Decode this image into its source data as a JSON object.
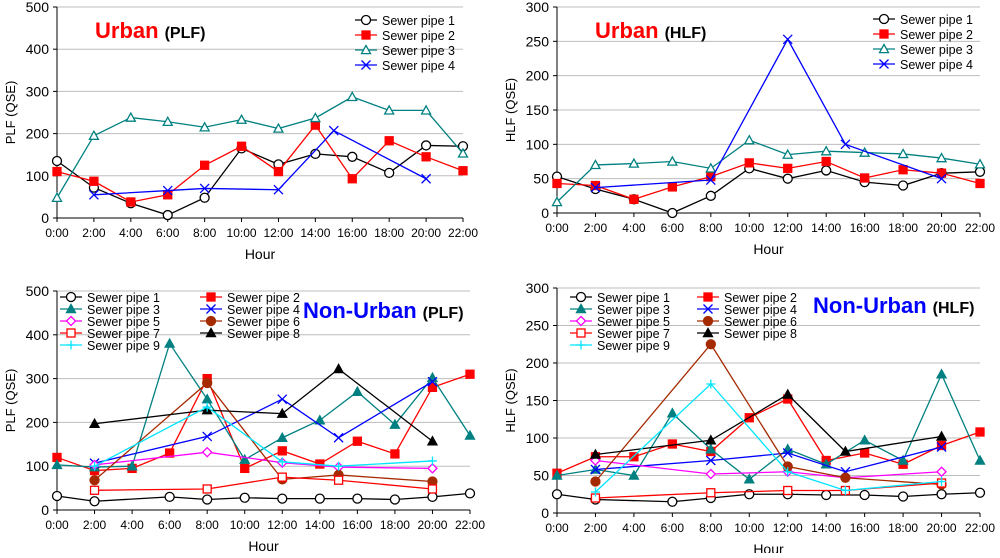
{
  "chart_data": [
    {
      "type": "line",
      "title": "Urban",
      "subtitle": "(PLF)",
      "xlabel": "Hour",
      "ylabel": "PLF (QSE)",
      "ylim": [
        0,
        500
      ],
      "yticks": [
        0,
        100,
        200,
        300,
        400,
        500
      ],
      "xticks": [
        "0:00",
        "2:00",
        "4:00",
        "6:00",
        "8:00",
        "10:00",
        "12:00",
        "14:00",
        "16:00",
        "18:00",
        "20:00",
        "22:00"
      ],
      "legend_position": "top-right",
      "legend_columns": 1,
      "series": [
        {
          "name": "Sewer pipe 1",
          "color": "#000000",
          "marker": "circle-open",
          "x": [
            0,
            2,
            4,
            6,
            8,
            10,
            12,
            14,
            16,
            18,
            20,
            22
          ],
          "values": [
            135,
            72,
            35,
            7,
            48,
            165,
            127,
            152,
            145,
            107,
            172,
            170
          ]
        },
        {
          "name": "Sewer pipe 2",
          "color": "#ff0000",
          "marker": "square-filled",
          "x": [
            0,
            2,
            4,
            6,
            8,
            10,
            12,
            14,
            16,
            18,
            20,
            22
          ],
          "values": [
            110,
            87,
            38,
            55,
            125,
            170,
            110,
            220,
            93,
            183,
            145,
            112
          ]
        },
        {
          "name": "Sewer pipe 3",
          "color": "#008080",
          "marker": "triangle-open",
          "x": [
            0,
            2,
            4,
            6,
            8,
            10,
            12,
            14,
            16,
            18,
            20,
            22
          ],
          "values": [
            48,
            195,
            238,
            228,
            215,
            233,
            212,
            237,
            287,
            255,
            255,
            153
          ]
        },
        {
          "name": "Sewer pipe 4",
          "color": "#0000ff",
          "marker": "x",
          "x": [
            2,
            6,
            8,
            12,
            15,
            20
          ],
          "values": [
            55,
            65,
            70,
            67,
            207,
            93
          ]
        }
      ]
    },
    {
      "type": "line",
      "title": "Urban",
      "subtitle": "(HLF)",
      "xlabel": "Hour",
      "ylabel": "HLF (QSE)",
      "ylim": [
        0,
        300
      ],
      "yticks": [
        0,
        50,
        100,
        150,
        200,
        250,
        300
      ],
      "xticks": [
        "0:00",
        "2:00",
        "4:00",
        "6:00",
        "8:00",
        "10:00",
        "12:00",
        "14:00",
        "16:00",
        "18:00",
        "20:00",
        "22:00"
      ],
      "legend_position": "top-right",
      "legend_columns": 1,
      "series": [
        {
          "name": "Sewer pipe 1",
          "color": "#000000",
          "marker": "circle-open",
          "x": [
            0,
            2,
            4,
            6,
            8,
            10,
            12,
            14,
            16,
            18,
            20,
            22
          ],
          "values": [
            53,
            35,
            20,
            0,
            25,
            65,
            50,
            62,
            45,
            40,
            58,
            60
          ]
        },
        {
          "name": "Sewer pipe 2",
          "color": "#ff0000",
          "marker": "square-filled",
          "x": [
            0,
            2,
            4,
            6,
            8,
            10,
            12,
            14,
            16,
            18,
            20,
            22
          ],
          "values": [
            43,
            40,
            20,
            38,
            53,
            73,
            65,
            75,
            51,
            63,
            58,
            43
          ]
        },
        {
          "name": "Sewer pipe 3",
          "color": "#008080",
          "marker": "triangle-open",
          "x": [
            0,
            2,
            4,
            6,
            8,
            10,
            12,
            14,
            16,
            18,
            20,
            22
          ],
          "values": [
            16,
            70,
            72,
            75,
            65,
            106,
            85,
            90,
            88,
            86,
            80,
            71
          ]
        },
        {
          "name": "Sewer pipe 4",
          "color": "#0000ff",
          "marker": "x",
          "x": [
            2,
            8,
            12,
            15,
            20
          ],
          "values": [
            37,
            48,
            253,
            100,
            50
          ]
        }
      ]
    },
    {
      "type": "line",
      "title": "Non-Urban",
      "subtitle": "(PLF)",
      "xlabel": "Hour",
      "ylabel": "PLF (QSE)",
      "ylim": [
        0,
        500
      ],
      "yticks": [
        0,
        100,
        200,
        300,
        400,
        500
      ],
      "xticks": [
        "0:00",
        "2:00",
        "4:00",
        "6:00",
        "8:00",
        "10:00",
        "12:00",
        "14:00",
        "16:00",
        "18:00",
        "20:00",
        "22:00"
      ],
      "legend_position": "top-left",
      "legend_columns": 2,
      "series": [
        {
          "name": "Sewer pipe 1",
          "color": "#000000",
          "marker": "circle-open",
          "x": [
            0,
            2,
            6,
            8,
            10,
            12,
            14,
            16,
            18,
            20,
            22
          ],
          "values": [
            32,
            20,
            30,
            24,
            28,
            26,
            26,
            26,
            24,
            30,
            38
          ]
        },
        {
          "name": "Sewer pipe 2",
          "color": "#ff0000",
          "marker": "square-filled",
          "x": [
            0,
            2,
            4,
            6,
            8,
            10,
            12,
            14,
            16,
            18,
            20,
            22
          ],
          "values": [
            120,
            90,
            95,
            130,
            300,
            95,
            135,
            105,
            157,
            128,
            280,
            310
          ]
        },
        {
          "name": "Sewer pipe 3",
          "color": "#008080",
          "marker": "triangle-filled",
          "x": [
            0,
            2,
            4,
            6,
            8,
            10,
            12,
            14,
            16,
            18,
            20,
            22
          ],
          "values": [
            103,
            98,
            100,
            380,
            253,
            115,
            165,
            205,
            270,
            195,
            302,
            170
          ]
        },
        {
          "name": "Sewer pipe 4",
          "color": "#0000ff",
          "marker": "x",
          "x": [
            2,
            8,
            12,
            15,
            20
          ],
          "values": [
            107,
            168,
            253,
            165,
            293
          ]
        },
        {
          "name": "Sewer pipe 5",
          "color": "#ff00ff",
          "marker": "diamond-open",
          "x": [
            2,
            8,
            12,
            15,
            20
          ],
          "values": [
            103,
            132,
            108,
            98,
            95
          ]
        },
        {
          "name": "Sewer pipe 6",
          "color": "#a52a00",
          "marker": "circle-filled",
          "x": [
            2,
            8,
            12,
            15,
            20
          ],
          "values": [
            68,
            290,
            70,
            80,
            65
          ]
        },
        {
          "name": "Sewer pipe 7",
          "color": "#ff0000",
          "marker": "square-open",
          "x": [
            2,
            8,
            12,
            15,
            20
          ],
          "values": [
            45,
            48,
            75,
            68,
            48
          ]
        },
        {
          "name": "Sewer pipe 8",
          "color": "#000000",
          "marker": "triangle-filled",
          "x": [
            2,
            8,
            12,
            15,
            20
          ],
          "values": [
            197,
            228,
            220,
            322,
            157
          ]
        },
        {
          "name": "Sewer pipe 9",
          "color": "#00e5ff",
          "marker": "plus",
          "x": [
            2,
            8,
            12,
            15,
            20
          ],
          "values": [
            100,
            235,
            110,
            100,
            112
          ]
        }
      ]
    },
    {
      "type": "line",
      "title": "Non-Urban",
      "subtitle": "(HLF)",
      "xlabel": "Hour",
      "ylabel": "HLF (QSE)",
      "ylim": [
        0,
        300
      ],
      "yticks": [
        0,
        50,
        100,
        150,
        200,
        250,
        300
      ],
      "xticks": [
        "0:00",
        "2:00",
        "4:00",
        "6:00",
        "8:00",
        "10:00",
        "12:00",
        "14:00",
        "16:00",
        "18:00",
        "20:00",
        "22:00"
      ],
      "legend_position": "top-left",
      "legend_columns": 2,
      "series": [
        {
          "name": "Sewer pipe 1",
          "color": "#000000",
          "marker": "circle-open",
          "x": [
            0,
            2,
            6,
            8,
            10,
            12,
            14,
            16,
            18,
            20,
            22
          ],
          "values": [
            25,
            18,
            15,
            20,
            25,
            25,
            24,
            24,
            22,
            25,
            27
          ]
        },
        {
          "name": "Sewer pipe 2",
          "color": "#ff0000",
          "marker": "square-filled",
          "x": [
            0,
            2,
            4,
            6,
            8,
            10,
            12,
            14,
            16,
            18,
            20,
            22
          ],
          "values": [
            53,
            75,
            75,
            92,
            82,
            127,
            152,
            70,
            80,
            65,
            90,
            108
          ]
        },
        {
          "name": "Sewer pipe 3",
          "color": "#008080",
          "marker": "triangle-filled",
          "x": [
            0,
            2,
            4,
            6,
            8,
            10,
            12,
            14,
            16,
            18,
            20,
            22
          ],
          "values": [
            50,
            58,
            50,
            133,
            85,
            45,
            85,
            65,
            97,
            70,
            185,
            70
          ]
        },
        {
          "name": "Sewer pipe 4",
          "color": "#0000ff",
          "marker": "x",
          "x": [
            2,
            8,
            12,
            15,
            20
          ],
          "values": [
            58,
            70,
            80,
            55,
            88
          ]
        },
        {
          "name": "Sewer pipe 5",
          "color": "#ff00ff",
          "marker": "diamond-open",
          "x": [
            2,
            8,
            12,
            15,
            20
          ],
          "values": [
            70,
            52,
            55,
            47,
            55
          ]
        },
        {
          "name": "Sewer pipe 6",
          "color": "#a52a00",
          "marker": "circle-filled",
          "x": [
            2,
            8,
            12,
            15,
            20
          ],
          "values": [
            42,
            225,
            62,
            47,
            38
          ]
        },
        {
          "name": "Sewer pipe 7",
          "color": "#ff0000",
          "marker": "square-open",
          "x": [
            2,
            8,
            12,
            15,
            20
          ],
          "values": [
            20,
            27,
            30,
            30,
            40
          ]
        },
        {
          "name": "Sewer pipe 8",
          "color": "#000000",
          "marker": "triangle-filled",
          "x": [
            2,
            8,
            12,
            15,
            20
          ],
          "values": [
            78,
            97,
            158,
            82,
            102
          ]
        },
        {
          "name": "Sewer pipe 9",
          "color": "#00e5ff",
          "marker": "plus",
          "x": [
            2,
            8,
            12,
            15,
            20
          ],
          "values": [
            28,
            172,
            55,
            30,
            42
          ]
        }
      ]
    }
  ]
}
